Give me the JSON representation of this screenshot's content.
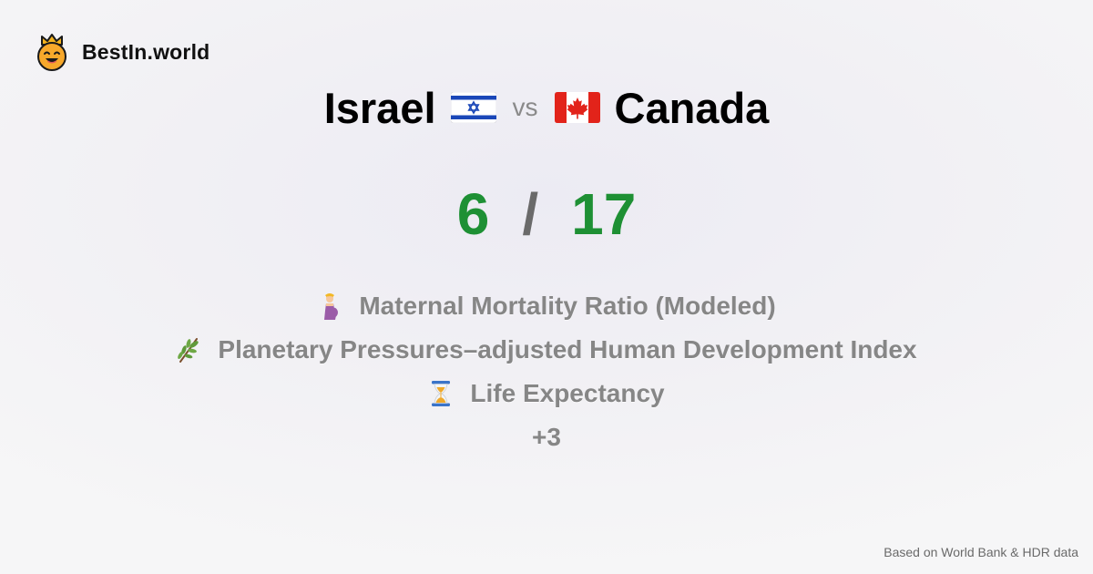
{
  "brand": {
    "name": "BestIn.world",
    "logo_icon": "crowned-smiley-icon"
  },
  "comparison": {
    "country_a": {
      "name": "Israel",
      "flag_icon": "israel-flag-icon"
    },
    "separator": "vs",
    "country_b": {
      "name": "Canada",
      "flag_icon": "canada-flag-icon"
    }
  },
  "score": {
    "a": "6",
    "slash": "/",
    "b": "17",
    "color": "#1e9034"
  },
  "metrics": [
    {
      "icon": "pregnant-woman-icon",
      "label": "Maternal Mortality Ratio (Modeled)"
    },
    {
      "icon": "herb-icon",
      "label": "Planetary Pressures–adjusted Human Development Index"
    },
    {
      "icon": "hourglass-icon",
      "label": "Life Expectancy"
    }
  ],
  "more_label": "+3",
  "footer": "Based on World Bank & HDR data"
}
